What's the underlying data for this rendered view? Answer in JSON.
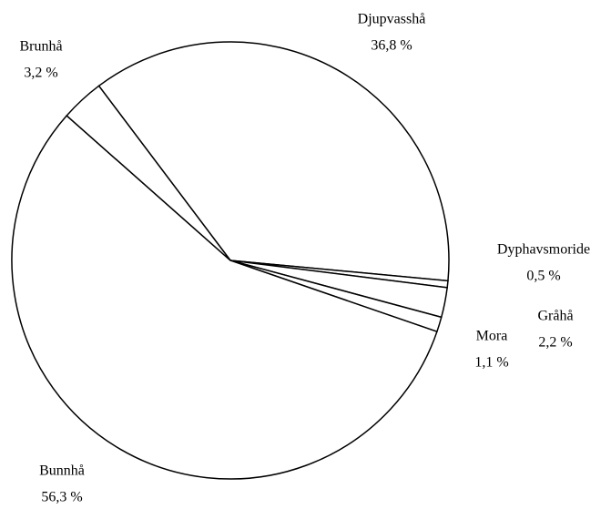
{
  "chart_data": {
    "type": "pie",
    "categories": [
      "Djupvasshå",
      "Dyphavsmoride",
      "Gråhå",
      "Mora",
      "Bunnhå",
      "Brunhå"
    ],
    "values": [
      36.8,
      0.5,
      2.2,
      1.1,
      56.3,
      3.2
    ],
    "value_labels": [
      "36,8 %",
      "0,5 %",
      "2,2 %",
      "1,1 %",
      "56,3 %",
      "3,2 %"
    ],
    "color": "#ffffff"
  }
}
